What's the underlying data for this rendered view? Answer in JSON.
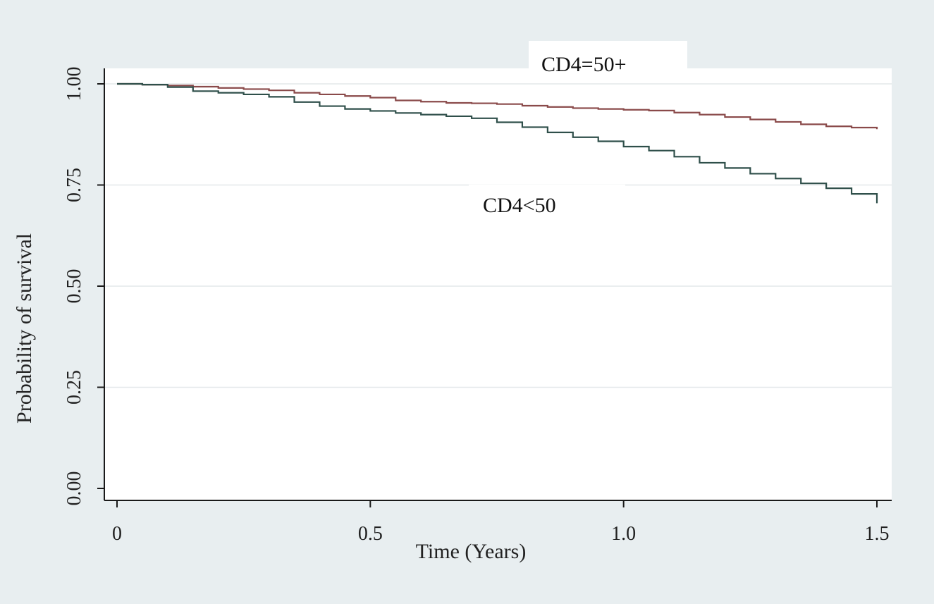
{
  "colors": {
    "outer_background": "#e8eef0",
    "plot_background": "#ffffff",
    "gridline": "#e4e8ea",
    "axis": "#1a1a1a",
    "series_cd4_50_plus": "#8a4a4a",
    "series_cd4_lt_50": "#2f4f4a"
  },
  "chart_data": {
    "type": "line",
    "title": "",
    "xlabel": "Time (Years)",
    "ylabel": "Probability of survival",
    "xlim": [
      0,
      1.5
    ],
    "ylim": [
      0,
      1
    ],
    "x_ticks": [
      "0",
      "0.5",
      "1.0",
      "1.5"
    ],
    "x_tick_values": [
      0,
      0.5,
      1.0,
      1.5
    ],
    "y_ticks": [
      "0.00",
      "0.25",
      "0.50",
      "0.75",
      "1.00"
    ],
    "y_tick_values": [
      0,
      0.25,
      0.5,
      0.75,
      1.0
    ],
    "grid": true,
    "step": true,
    "annotations": [
      "CD4=50+",
      "CD4<50"
    ],
    "series": [
      {
        "name": "CD4=50+",
        "x": [
          0,
          0.05,
          0.1,
          0.15,
          0.2,
          0.25,
          0.3,
          0.35,
          0.4,
          0.45,
          0.5,
          0.55,
          0.6,
          0.65,
          0.7,
          0.75,
          0.8,
          0.85,
          0.9,
          0.95,
          1.0,
          1.05,
          1.1,
          1.15,
          1.2,
          1.25,
          1.3,
          1.35,
          1.4,
          1.45,
          1.5
        ],
        "y": [
          1.0,
          0.998,
          0.996,
          0.993,
          0.99,
          0.987,
          0.984,
          0.978,
          0.974,
          0.97,
          0.966,
          0.959,
          0.956,
          0.953,
          0.952,
          0.95,
          0.946,
          0.943,
          0.94,
          0.938,
          0.936,
          0.934,
          0.929,
          0.924,
          0.918,
          0.912,
          0.906,
          0.9,
          0.895,
          0.892,
          0.888
        ]
      },
      {
        "name": "CD4<50",
        "x": [
          0,
          0.05,
          0.1,
          0.15,
          0.2,
          0.25,
          0.3,
          0.35,
          0.4,
          0.45,
          0.5,
          0.55,
          0.6,
          0.65,
          0.7,
          0.75,
          0.8,
          0.85,
          0.9,
          0.95,
          1.0,
          1.05,
          1.1,
          1.15,
          1.2,
          1.25,
          1.3,
          1.35,
          1.4,
          1.45,
          1.5
        ],
        "y": [
          1.0,
          0.998,
          0.992,
          0.982,
          0.978,
          0.974,
          0.968,
          0.955,
          0.945,
          0.938,
          0.933,
          0.928,
          0.924,
          0.92,
          0.915,
          0.905,
          0.893,
          0.88,
          0.868,
          0.858,
          0.845,
          0.835,
          0.82,
          0.805,
          0.792,
          0.778,
          0.766,
          0.754,
          0.742,
          0.728,
          0.705
        ]
      }
    ]
  }
}
